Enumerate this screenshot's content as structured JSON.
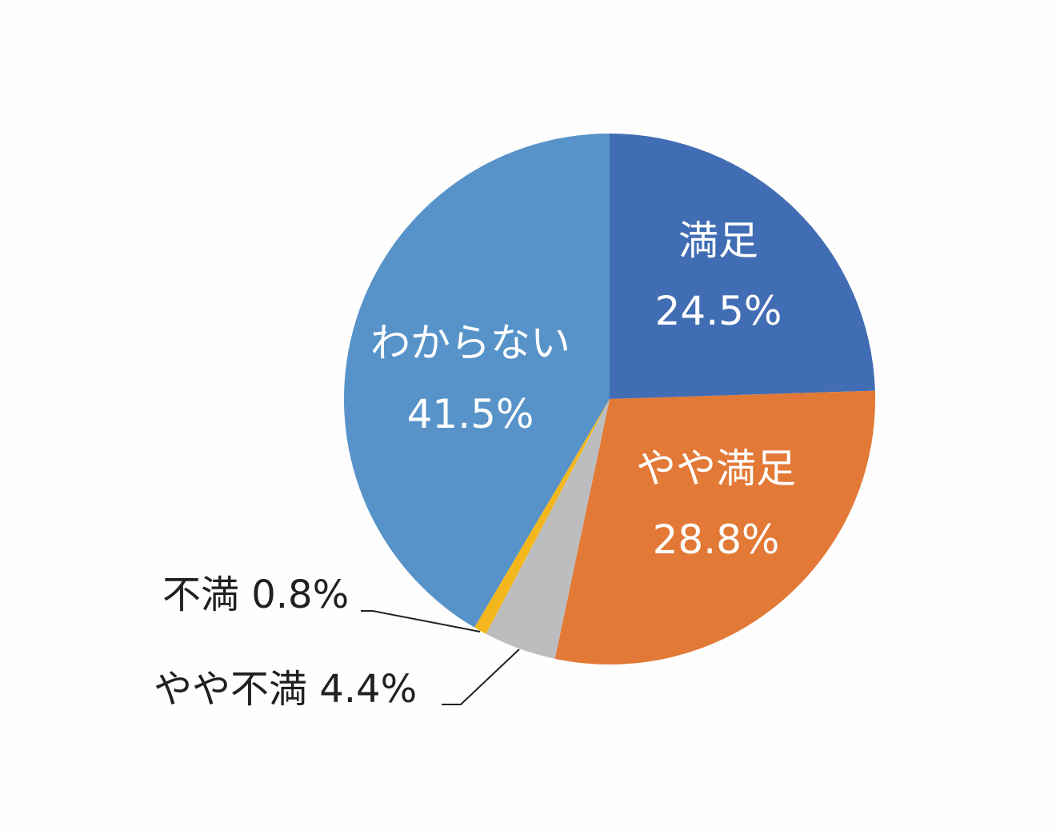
{
  "chart_data": {
    "type": "pie",
    "title": "",
    "start": "top",
    "direction": "clockwise",
    "slices": [
      {
        "label": "満足",
        "value": 24.5,
        "value_text": "24.5%",
        "color": "#416db4"
      },
      {
        "label": "やや満足",
        "value": 28.8,
        "value_text": "28.8%",
        "color": "#e27936"
      },
      {
        "label": "やや不満",
        "value": 4.4,
        "value_text": "4.4%",
        "color": "#bcbdbf",
        "outside_text": "やや不満 4.4%"
      },
      {
        "label": "不満",
        "value": 0.8,
        "value_text": "0.8%",
        "color": "#f3b71d",
        "outside_text": "不満 0.8%"
      },
      {
        "label": "わからない",
        "value": 41.5,
        "value_text": "41.5%",
        "color": "#5793c9"
      }
    ]
  }
}
